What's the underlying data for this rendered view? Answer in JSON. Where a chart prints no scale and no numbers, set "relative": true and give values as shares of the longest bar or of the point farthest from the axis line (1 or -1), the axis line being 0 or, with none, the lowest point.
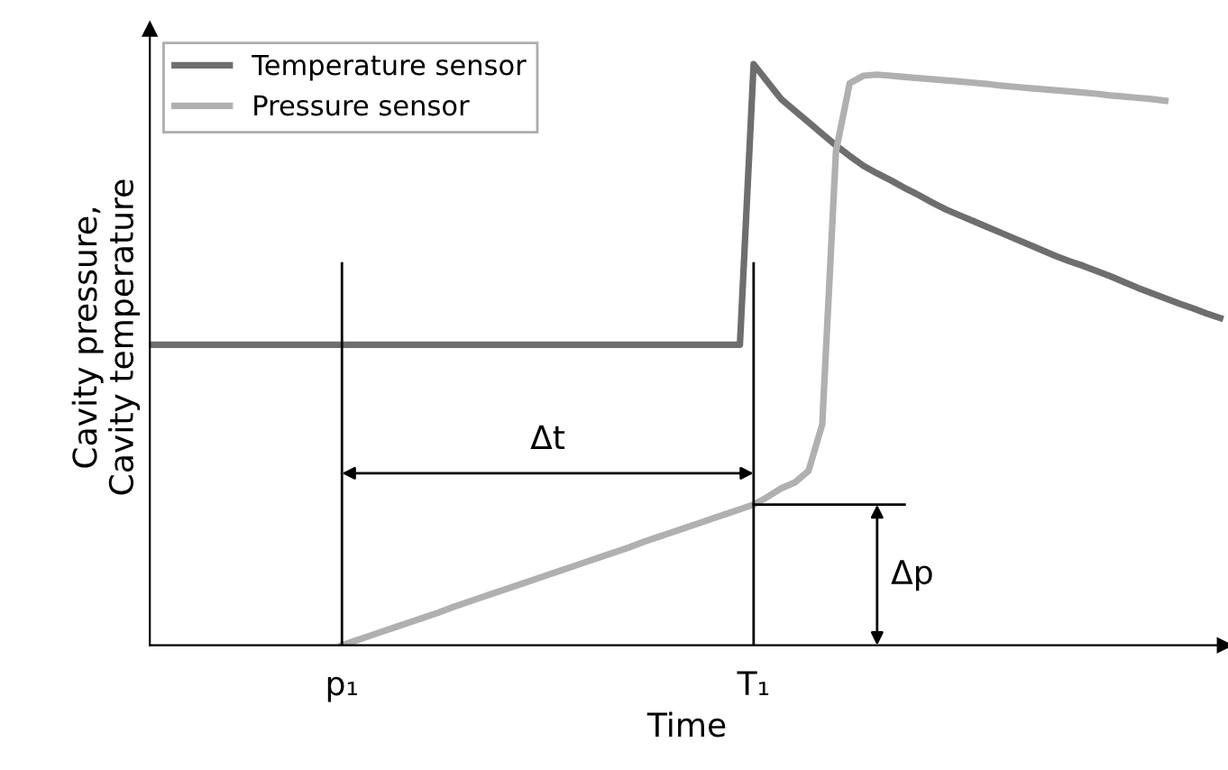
{
  "chart_data": {
    "type": "line",
    "relative": true,
    "xlabel": "Time",
    "ylabel": "Cavity pressure,\nCavity temperature",
    "categories": [
      null,
      null,
      null,
      null,
      null,
      null,
      null,
      null,
      null,
      null,
      null,
      null,
      null,
      null,
      "p₁",
      null,
      null,
      null,
      null,
      null,
      null,
      null,
      null,
      null,
      null,
      null,
      null,
      null,
      null,
      null,
      null,
      null,
      null,
      null,
      null,
      null,
      null,
      null,
      null,
      null,
      null,
      null,
      null,
      null,
      "T₁",
      null,
      null,
      null,
      null,
      null,
      null,
      null,
      null,
      null,
      null,
      null,
      null,
      null,
      null,
      null,
      null,
      null,
      null,
      null,
      null,
      null,
      null,
      null,
      null,
      null,
      null,
      null,
      null,
      null,
      null,
      null,
      null,
      null,
      null
    ],
    "series": [
      {
        "name": "Temperature sensor",
        "color": "#6e6e6e",
        "values": [
          0.517,
          0.517,
          0.517,
          0.517,
          0.517,
          0.517,
          0.517,
          0.517,
          0.517,
          0.517,
          0.517,
          0.517,
          0.517,
          0.517,
          0.517,
          0.517,
          0.517,
          0.517,
          0.517,
          0.517,
          0.517,
          0.517,
          0.517,
          0.517,
          0.517,
          0.517,
          0.517,
          0.517,
          0.517,
          0.517,
          0.517,
          0.517,
          0.517,
          0.517,
          0.517,
          0.517,
          0.517,
          0.517,
          0.517,
          0.517,
          0.517,
          0.517,
          0.517,
          0.517,
          1.0,
          0.97,
          0.94,
          0.92,
          0.9,
          0.88,
          0.86,
          0.842,
          0.825,
          0.812,
          0.8,
          0.787,
          0.775,
          0.762,
          0.75,
          0.74,
          0.73,
          0.72,
          0.71,
          0.7,
          0.69,
          0.68,
          0.67,
          0.661,
          0.653,
          0.644,
          0.635,
          0.625,
          0.615,
          0.606,
          0.597,
          0.588,
          0.58,
          0.571,
          0.563
        ]
      },
      {
        "name": "Pressure sensor",
        "color": "#b0b0b0",
        "values": [
          null,
          null,
          null,
          null,
          null,
          null,
          null,
          null,
          null,
          null,
          null,
          null,
          null,
          null,
          0,
          0.008,
          0.016,
          0.024,
          0.032,
          0.04,
          0.048,
          0.056,
          0.065,
          0.073,
          0.081,
          0.089,
          0.097,
          0.105,
          0.113,
          0.121,
          0.129,
          0.137,
          0.145,
          0.153,
          0.161,
          0.169,
          0.178,
          0.186,
          0.194,
          0.202,
          0.21,
          0.218,
          0.226,
          0.234,
          0.242,
          0.255,
          0.27,
          0.28,
          0.3,
          0.38,
          0.85,
          0.967,
          0.98,
          0.982,
          0.98,
          0.978,
          0.976,
          0.974,
          0.972,
          0.97,
          0.968,
          0.966,
          0.963,
          0.961,
          0.959,
          0.957,
          0.955,
          0.953,
          0.951,
          0.949,
          0.946,
          0.944,
          0.942,
          0.94,
          0.937,
          null,
          null,
          null,
          null
        ]
      }
    ],
    "ref_lines": [
      {
        "axis": "x",
        "value": "p₁",
        "color": "#000000"
      },
      {
        "axis": "x",
        "value": "T₁",
        "color": "#000000"
      }
    ],
    "annotations": [
      "Δt",
      "Δp"
    ],
    "legend": "top left",
    "grid": false
  }
}
